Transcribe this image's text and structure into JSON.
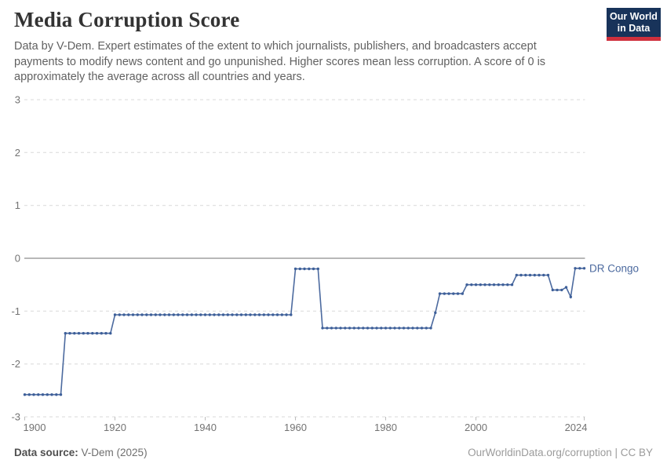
{
  "header": {
    "title": "Media Corruption Score",
    "subtitle": "Data by V-Dem. Expert estimates of the extent to which journalists, publishers, and broadcasters accept payments to modify news content and go unpunished. Higher scores mean less corruption. A score of 0 is approximately the average across all countries and years.",
    "logo": {
      "line1": "Our World",
      "line2": "in Data"
    }
  },
  "footer": {
    "source_label": "Data source:",
    "source_value": " V-Dem (2025)",
    "rights": "OurWorldinData.org/corruption | CC BY"
  },
  "colors": {
    "line": "#4c6a9f",
    "marker": "#3d5f99",
    "grid": "#d9d9d9",
    "zero_line": "#8e8e8e",
    "axis_text": "#737373",
    "title": "#333333",
    "subtitle": "#616161",
    "logo_bg": "#18335a",
    "logo_red": "#cf303d"
  },
  "chart_data": {
    "type": "line",
    "title": "Media Corruption Score",
    "xlabel": "",
    "ylabel": "",
    "xlim": [
      1900,
      2024
    ],
    "ylim": [
      -3,
      3
    ],
    "x_ticks": [
      1900,
      1920,
      1940,
      1960,
      1980,
      2000,
      2024
    ],
    "y_ticks": [
      3,
      2,
      1,
      0,
      -1,
      -2,
      -3
    ],
    "grid": "dashed horizontal gridlines, solid line at 0",
    "legend": "entity label inline right of last point",
    "series": [
      {
        "name": "DR Congo",
        "points_note": "one data point per year 1900-2024; values constant within each run",
        "runs": [
          {
            "from": 1900,
            "to": 1908,
            "value": -2.58
          },
          {
            "from": 1909,
            "to": 1919,
            "value": -1.42
          },
          {
            "from": 1920,
            "to": 1959,
            "value": -1.07
          },
          {
            "from": 1960,
            "to": 1965,
            "value": -0.2
          },
          {
            "from": 1966,
            "to": 1990,
            "value": -1.32
          },
          {
            "from": 1991,
            "to": 1991,
            "value": -1.03
          },
          {
            "from": 1992,
            "to": 1997,
            "value": -0.67
          },
          {
            "from": 1998,
            "to": 2008,
            "value": -0.5
          },
          {
            "from": 2009,
            "to": 2016,
            "value": -0.32
          },
          {
            "from": 2017,
            "to": 2019,
            "value": -0.6
          },
          {
            "from": 2020,
            "to": 2020,
            "value": -0.55
          },
          {
            "from": 2021,
            "to": 2021,
            "value": -0.73
          },
          {
            "from": 2022,
            "to": 2024,
            "value": -0.19
          }
        ]
      }
    ]
  }
}
